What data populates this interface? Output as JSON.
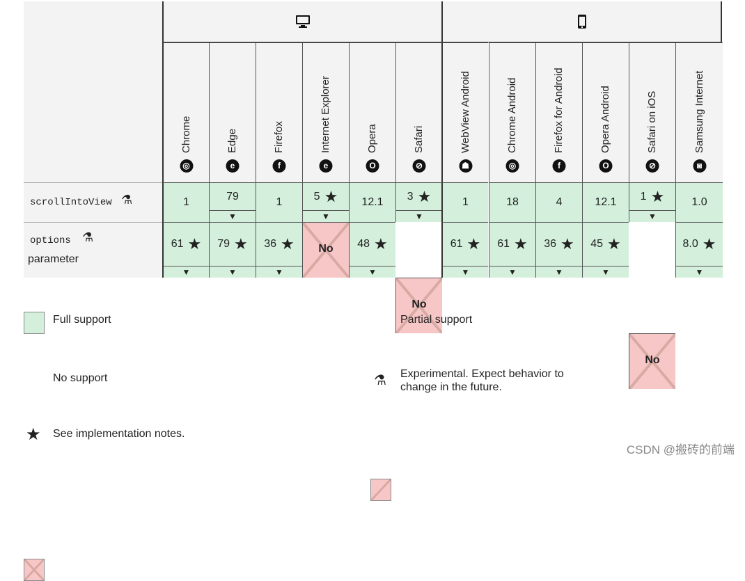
{
  "platforms": {
    "desktop_icon": "desktop-icon",
    "mobile_icon": "mobile-phone-icon"
  },
  "browsers": [
    {
      "name": "Chrome",
      "icon": "chrome-icon",
      "glyph": "◎"
    },
    {
      "name": "Edge",
      "icon": "edge-icon",
      "glyph": "e"
    },
    {
      "name": "Firefox",
      "icon": "firefox-icon",
      "glyph": "f"
    },
    {
      "name": "Internet Explorer",
      "icon": "internet-explorer-icon",
      "glyph": "e"
    },
    {
      "name": "Opera",
      "icon": "opera-icon",
      "glyph": "O"
    },
    {
      "name": "Safari",
      "icon": "safari-icon",
      "glyph": "⊘"
    },
    {
      "name": "WebView Android",
      "icon": "android-icon",
      "glyph": "☗"
    },
    {
      "name": "Chrome Android",
      "icon": "chrome-icon",
      "glyph": "◎"
    },
    {
      "name": "Firefox for Android",
      "icon": "firefox-icon",
      "glyph": "f"
    },
    {
      "name": "Opera Android",
      "icon": "opera-icon",
      "glyph": "O"
    },
    {
      "name": "Safari on iOS",
      "icon": "safari-icon",
      "glyph": "⊘"
    },
    {
      "name": "Samsung Internet",
      "icon": "samsung-internet-icon",
      "glyph": "◙"
    }
  ],
  "rows": [
    {
      "label": "scrollIntoView",
      "label2": "",
      "cells": [
        {
          "value": "1",
          "support": "full",
          "star": false,
          "expand": false
        },
        {
          "value": "79",
          "support": "full",
          "star": false,
          "expand": true
        },
        {
          "value": "1",
          "support": "full",
          "star": false,
          "expand": false
        },
        {
          "value": "5",
          "support": "full",
          "star": true,
          "expand": true
        },
        {
          "value": "12.1",
          "support": "full",
          "star": false,
          "expand": false
        },
        {
          "value": "3",
          "support": "full",
          "star": true,
          "expand": true
        },
        {
          "value": "1",
          "support": "full",
          "star": false,
          "expand": false
        },
        {
          "value": "18",
          "support": "full",
          "star": false,
          "expand": false
        },
        {
          "value": "4",
          "support": "full",
          "star": false,
          "expand": false
        },
        {
          "value": "12.1",
          "support": "full",
          "star": false,
          "expand": false
        },
        {
          "value": "1",
          "support": "full",
          "star": true,
          "expand": true
        },
        {
          "value": "1.0",
          "support": "full",
          "star": false,
          "expand": false
        }
      ]
    },
    {
      "label": "options",
      "label2": "parameter",
      "cells": [
        {
          "value": "61",
          "support": "full",
          "star": true,
          "expand": true
        },
        {
          "value": "79",
          "support": "full",
          "star": true,
          "expand": true
        },
        {
          "value": "36",
          "support": "full",
          "star": true,
          "expand": true
        },
        {
          "value": "No",
          "support": "none",
          "star": false,
          "expand": false
        },
        {
          "value": "48",
          "support": "full",
          "star": true,
          "expand": true
        },
        {
          "value": "No",
          "support": "none",
          "star": false,
          "expand": false
        },
        {
          "value": "61",
          "support": "full",
          "star": true,
          "expand": true
        },
        {
          "value": "61",
          "support": "full",
          "star": true,
          "expand": true
        },
        {
          "value": "36",
          "support": "full",
          "star": true,
          "expand": true
        },
        {
          "value": "45",
          "support": "full",
          "star": true,
          "expand": true
        },
        {
          "value": "No",
          "support": "none",
          "star": false,
          "expand": false
        },
        {
          "value": "8.0",
          "support": "full",
          "star": true,
          "expand": true
        }
      ]
    }
  ],
  "legend": {
    "full": "Full support",
    "partial": "Partial support",
    "none": "No support",
    "experimental_line1": "Experimental. Expect behavior to",
    "experimental_line2": "change in the future.",
    "notes": "See implementation notes."
  },
  "symbols": {
    "star": "★",
    "expand": "▼",
    "flask": "⚗"
  },
  "colors": {
    "full": "#d4f0dc",
    "none": "#f7c6c6",
    "header": "#f3f3f3"
  },
  "watermark": "CSDN @搬砖的前端"
}
